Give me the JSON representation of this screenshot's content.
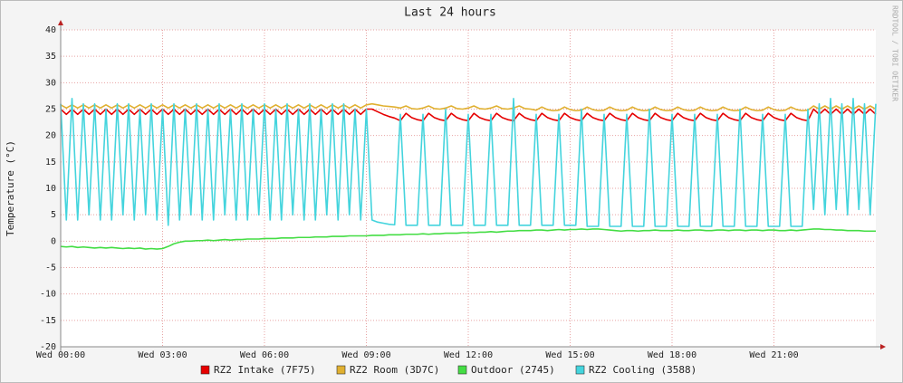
{
  "chart_data": {
    "type": "line",
    "title": "Last 24 hours",
    "y_label": "Temperature (°C)",
    "watermark": "RRDTOOL / TOBI OETIKER",
    "x": [
      0,
      10,
      20,
      30,
      40,
      50,
      60,
      70,
      80,
      90,
      100,
      110,
      120,
      130,
      140,
      150,
      160,
      170,
      180,
      190,
      200,
      210,
      220,
      230,
      240,
      250,
      260,
      270,
      280,
      290,
      300,
      310,
      320,
      330,
      340,
      350,
      360,
      370,
      380,
      390,
      400,
      410,
      420,
      430,
      440,
      450,
      460,
      470,
      480,
      490,
      500,
      510,
      520,
      530,
      540,
      550,
      560,
      570,
      580,
      590,
      600,
      610,
      620,
      630,
      640,
      650,
      660,
      670,
      680,
      690,
      700,
      710,
      720,
      730,
      740,
      750,
      760,
      770,
      780,
      790,
      800,
      810,
      820,
      830,
      840,
      850,
      860,
      870,
      880,
      890,
      900,
      910,
      920,
      930,
      940,
      950,
      960,
      970,
      980,
      990,
      1000,
      1010,
      1020,
      1030,
      1040,
      1050,
      1060,
      1070,
      1080,
      1090,
      1100,
      1110,
      1120,
      1130,
      1140,
      1150,
      1160,
      1170,
      1180,
      1190,
      1200,
      1210,
      1220,
      1230,
      1240,
      1250,
      1260,
      1270,
      1280,
      1290,
      1300,
      1310,
      1320,
      1330,
      1340,
      1350,
      1360,
      1370,
      1380,
      1390,
      1400,
      1410,
      1420,
      1430,
      1440
    ],
    "xlim": [
      0,
      1440
    ],
    "xticks": [
      {
        "value": 0,
        "label": "Wed 00:00"
      },
      {
        "value": 180,
        "label": "Wed 03:00"
      },
      {
        "value": 360,
        "label": "Wed 06:00"
      },
      {
        "value": 540,
        "label": "Wed 09:00"
      },
      {
        "value": 720,
        "label": "Wed 12:00"
      },
      {
        "value": 900,
        "label": "Wed 15:00"
      },
      {
        "value": 1080,
        "label": "Wed 18:00"
      },
      {
        "value": 1260,
        "label": "Wed 21:00"
      }
    ],
    "ylim": [
      -20,
      40
    ],
    "yticks": [
      -20,
      -15,
      -10,
      -5,
      0,
      5,
      10,
      15,
      20,
      25,
      30,
      35,
      40
    ],
    "grid": true,
    "series": [
      {
        "name": "RZ2 Intake (7F75)",
        "color": "#e60000",
        "values": [
          25,
          24,
          25,
          24,
          25,
          24,
          25,
          24,
          25,
          24,
          25,
          24,
          25,
          24,
          25,
          24,
          25,
          24,
          25,
          24,
          25,
          24,
          25,
          24,
          25,
          24,
          25,
          24,
          25,
          24,
          25,
          24,
          25,
          24,
          25,
          24,
          25,
          24,
          25,
          24,
          25,
          24,
          25,
          24,
          25,
          24,
          25,
          24,
          25,
          24,
          25,
          24,
          25,
          24,
          25,
          25,
          24.5,
          24,
          23.6,
          23.3,
          22.8,
          24.2,
          23.4,
          23,
          22.8,
          24.2,
          23.4,
          23,
          22.8,
          24.2,
          23.4,
          23,
          22.8,
          24.2,
          23.4,
          23,
          22.8,
          24.2,
          23.4,
          23,
          22.8,
          24.2,
          23.4,
          23,
          22.8,
          24.2,
          23.4,
          23,
          22.8,
          24.2,
          23.4,
          23,
          22.8,
          24.2,
          23.4,
          23,
          22.8,
          24.2,
          23.4,
          23,
          22.8,
          24.2,
          23.4,
          23,
          22.8,
          24.2,
          23.4,
          23,
          22.8,
          24.2,
          23.4,
          23,
          22.8,
          24.2,
          23.4,
          23,
          22.8,
          24.2,
          23.4,
          23,
          22.8,
          24.2,
          23.4,
          23,
          22.8,
          24.2,
          23.4,
          23,
          22.8,
          24.2,
          23.4,
          23,
          22.8,
          25,
          24,
          25,
          24,
          25,
          24,
          25,
          24,
          25,
          24,
          25,
          24
        ]
      },
      {
        "name": "RZ2 Room (3D7C)",
        "color": "#e0b030",
        "values": [
          25.8,
          25.2,
          25.8,
          25.2,
          25.8,
          25.2,
          25.8,
          25.2,
          25.8,
          25.2,
          25.8,
          25.2,
          25.8,
          25.2,
          25.8,
          25.2,
          25.8,
          25.2,
          25.8,
          25.2,
          25.8,
          25.2,
          25.8,
          25.2,
          25.8,
          25.2,
          25.8,
          25.2,
          25.8,
          25.2,
          25.8,
          25.2,
          25.8,
          25.2,
          25.8,
          25.2,
          25.8,
          25.2,
          25.8,
          25.2,
          25.8,
          25.2,
          25.8,
          25.2,
          25.8,
          25.2,
          25.8,
          25.2,
          25.8,
          25.2,
          25.8,
          25.2,
          25.8,
          25.2,
          25.8,
          26,
          25.8,
          25.6,
          25.5,
          25.4,
          25.2,
          25.6,
          25.1,
          25,
          25.2,
          25.6,
          25.1,
          25,
          25.2,
          25.6,
          25.1,
          25,
          25.2,
          25.6,
          25.1,
          25,
          25.2,
          25.6,
          25.1,
          25,
          25.2,
          25.6,
          25.1,
          25,
          24.8,
          25.4,
          24.9,
          24.7,
          24.8,
          25.4,
          24.9,
          24.7,
          24.8,
          25.4,
          24.9,
          24.7,
          24.8,
          25.4,
          24.9,
          24.7,
          24.8,
          25.4,
          24.9,
          24.7,
          24.8,
          25.4,
          24.9,
          24.7,
          24.8,
          25.4,
          24.9,
          24.7,
          24.8,
          25.4,
          24.9,
          24.7,
          24.8,
          25.4,
          24.9,
          24.7,
          24.8,
          25.4,
          24.9,
          24.7,
          24.8,
          25.4,
          24.9,
          24.7,
          24.8,
          25.4,
          24.9,
          24.7,
          24.8,
          25.6,
          25,
          25.6,
          25,
          25.6,
          25,
          25.6,
          25,
          25.6,
          25,
          25.6,
          25
        ]
      },
      {
        "name": "Outdoor (2745)",
        "color": "#44dd44",
        "values": [
          -1,
          -1.1,
          -1,
          -1.2,
          -1.1,
          -1.2,
          -1.3,
          -1.2,
          -1.3,
          -1.2,
          -1.3,
          -1.4,
          -1.3,
          -1.4,
          -1.3,
          -1.5,
          -1.4,
          -1.5,
          -1.4,
          -1,
          -0.5,
          -0.2,
          0,
          0,
          0.1,
          0.1,
          0.2,
          0.1,
          0.2,
          0.3,
          0.2,
          0.3,
          0.3,
          0.4,
          0.4,
          0.4,
          0.5,
          0.5,
          0.5,
          0.6,
          0.6,
          0.6,
          0.7,
          0.7,
          0.7,
          0.8,
          0.8,
          0.8,
          0.9,
          0.9,
          0.9,
          1,
          1,
          1,
          1,
          1.1,
          1.1,
          1.1,
          1.2,
          1.2,
          1.2,
          1.3,
          1.3,
          1.3,
          1.4,
          1.3,
          1.4,
          1.4,
          1.5,
          1.5,
          1.5,
          1.6,
          1.6,
          1.6,
          1.7,
          1.7,
          1.8,
          1.7,
          1.8,
          1.9,
          1.9,
          2,
          2,
          2,
          2.1,
          2.1,
          2,
          2.1,
          2.2,
          2.1,
          2.2,
          2.2,
          2.3,
          2.2,
          2.3,
          2.3,
          2.2,
          2.1,
          2,
          1.9,
          2,
          2,
          1.9,
          2,
          2,
          2.1,
          2,
          2,
          2,
          2.1,
          2,
          2,
          2.1,
          2.1,
          2,
          2,
          2.1,
          2.1,
          2,
          2.1,
          2.1,
          2,
          2.1,
          2.1,
          2,
          2.1,
          2.1,
          2,
          2,
          2.1,
          2,
          2.1,
          2.2,
          2.3,
          2.3,
          2.2,
          2.2,
          2.1,
          2.1,
          2,
          2,
          2,
          1.9,
          1.9,
          1.9
        ]
      },
      {
        "name": "RZ2 Cooling (3588)",
        "color": "#44d4dd",
        "values": [
          26,
          4,
          27,
          4,
          26,
          5,
          26,
          4,
          25,
          4,
          26,
          5,
          26,
          4,
          25,
          5,
          26,
          4,
          25,
          3,
          26,
          4,
          25,
          5,
          26,
          4,
          25,
          4,
          26,
          5,
          25,
          4,
          26,
          4,
          25,
          5,
          26,
          4,
          25,
          4,
          26,
          5,
          25,
          4,
          26,
          4,
          25,
          5,
          26,
          4,
          26,
          5,
          25,
          4,
          25,
          4,
          3.6,
          3.4,
          3.2,
          3.1,
          24,
          3,
          3,
          3,
          24,
          3,
          3,
          3,
          25,
          3,
          3,
          3,
          24,
          3,
          3,
          3,
          24,
          3,
          3,
          3,
          27,
          3,
          3,
          3,
          24,
          3,
          3,
          3,
          24,
          3,
          3,
          3,
          25,
          2.8,
          2.8,
          2.8,
          24,
          2.8,
          2.8,
          2.8,
          24,
          2.8,
          2.8,
          2.8,
          25,
          2.8,
          2.8,
          2.8,
          24,
          2.8,
          2.8,
          2.8,
          24,
          2.8,
          2.8,
          2.8,
          24,
          2.8,
          2.8,
          2.8,
          25,
          2.8,
          2.8,
          2.8,
          24,
          2.8,
          2.8,
          2.8,
          24,
          2.8,
          2.8,
          2.8,
          25,
          6,
          26,
          5,
          27,
          6,
          26,
          5,
          27,
          6,
          26,
          5,
          26
        ]
      }
    ]
  }
}
